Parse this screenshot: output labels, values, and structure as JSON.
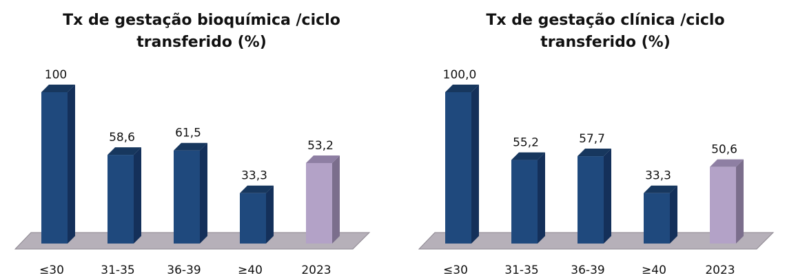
{
  "chart_data": [
    {
      "type": "bar",
      "title_lines": [
        "Tx de gestação bioquímica /ciclo",
        "transferido (%)"
      ],
      "categories": [
        "≤30",
        "31-35",
        "36-39",
        "≥40",
        "2023"
      ],
      "values": [
        100,
        58.6,
        61.5,
        33.3,
        53.2
      ],
      "value_labels": [
        "100",
        "58,6",
        "61,5",
        "33,3",
        "53,2"
      ],
      "ylim": [
        0,
        100
      ],
      "grid": false,
      "legend": "none",
      "colors": [
        "#1f497d",
        "#1f497d",
        "#1f497d",
        "#1f497d",
        "#b3a2c7"
      ],
      "side_colors": [
        "#14305a",
        "#14305a",
        "#14305a",
        "#14305a",
        "#7b6e8c"
      ],
      "top_colors": [
        "#17375e",
        "#17375e",
        "#17375e",
        "#17375e",
        "#8e7fa3"
      ],
      "floor_color": "#b6b0b9"
    },
    {
      "type": "bar",
      "title_lines": [
        "Tx de gestação clínica /ciclo",
        "transferido (%)"
      ],
      "categories": [
        "≤30",
        "31-35",
        "36-39",
        "≥40",
        "2023"
      ],
      "values": [
        100.0,
        55.2,
        57.7,
        33.3,
        50.6
      ],
      "value_labels": [
        "100,0",
        "55,2",
        "57,7",
        "33,3",
        "50,6"
      ],
      "ylim": [
        0,
        100
      ],
      "grid": false,
      "legend": "none",
      "colors": [
        "#1f497d",
        "#1f497d",
        "#1f497d",
        "#1f497d",
        "#b3a2c7"
      ],
      "side_colors": [
        "#14305a",
        "#14305a",
        "#14305a",
        "#14305a",
        "#7b6e8c"
      ],
      "top_colors": [
        "#17375e",
        "#17375e",
        "#17375e",
        "#17375e",
        "#8e7fa3"
      ],
      "floor_color": "#b6b0b9"
    }
  ]
}
